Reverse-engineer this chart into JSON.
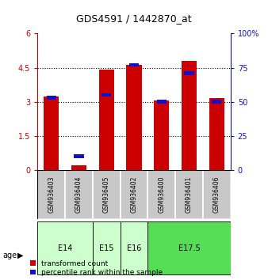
{
  "title": "GDS4591 / 1442870_at",
  "samples": [
    "GSM936403",
    "GSM936404",
    "GSM936405",
    "GSM936402",
    "GSM936400",
    "GSM936401",
    "GSM936406"
  ],
  "red_values": [
    3.25,
    0.22,
    4.4,
    4.62,
    3.05,
    4.8,
    3.15
  ],
  "blue_values_pct": [
    53,
    10,
    55,
    77,
    50,
    71,
    50
  ],
  "ylim_left": [
    0,
    6
  ],
  "yticks_left": [
    0,
    1.5,
    3,
    4.5,
    6
  ],
  "ytick_labels_left": [
    "0",
    "1.5",
    "3",
    "4.5",
    "6"
  ],
  "ylim_right": [
    0,
    100
  ],
  "yticks_right": [
    0,
    25,
    50,
    75,
    100
  ],
  "ytick_labels_right": [
    "0",
    "25",
    "50",
    "75",
    "100%"
  ],
  "age_groups": [
    {
      "label": "E14",
      "start": 0,
      "end": 1,
      "color": "#ccffcc"
    },
    {
      "label": "E15",
      "start": 2,
      "end": 2,
      "color": "#ccffcc"
    },
    {
      "label": "E16",
      "start": 3,
      "end": 3,
      "color": "#ccffcc"
    },
    {
      "label": "E17.5",
      "start": 4,
      "end": 6,
      "color": "#55dd55"
    }
  ],
  "bar_width": 0.55,
  "blue_bar_width": 0.35,
  "red_color": "#cc0000",
  "blue_color": "#1111cc",
  "left_tick_color": "#cc0000",
  "right_tick_color": "#1111cc",
  "bg_label": "#c8c8c8",
  "legend_red_label": "transformed count",
  "legend_blue_label": "percentile rank within the sample",
  "figure_bg": "#ffffff"
}
